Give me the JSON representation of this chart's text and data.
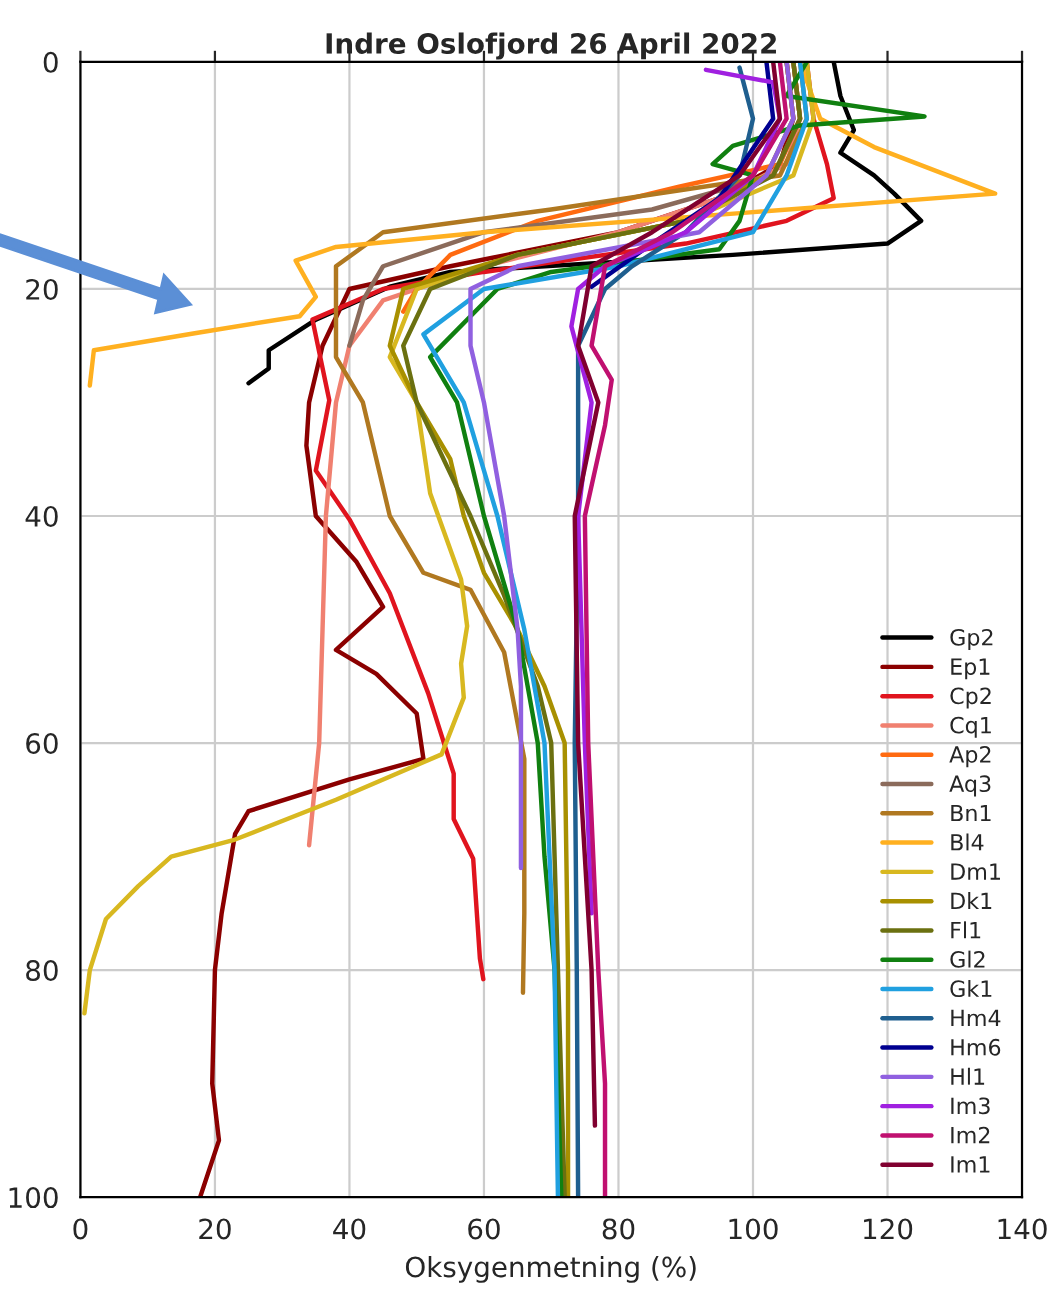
{
  "chart_data": {
    "type": "line",
    "title": "Indre Oslofjord 26 April 2022",
    "xlabel": "Oksygenmetning (%)",
    "xlim": [
      0,
      140
    ],
    "xticks": [
      0,
      20,
      40,
      60,
      80,
      100,
      120,
      140
    ],
    "ylim": [
      100,
      0
    ],
    "yticks": [
      0,
      20,
      40,
      60,
      80,
      100
    ],
    "grid": true,
    "legend": "lower right",
    "line_style": "solid",
    "series": [
      {
        "name": "Gp2",
        "color": "#000000",
        "x": [
          112,
          113,
          115,
          113,
          118,
          121,
          125,
          120,
          97,
          55,
          46,
          35,
          28,
          28,
          25
        ],
        "values": [
          0,
          3,
          6,
          8,
          10,
          11.6,
          14,
          16,
          17,
          18.5,
          19.8,
          22.7,
          25.4,
          27,
          28.3
        ]
      },
      {
        "name": "Ep1",
        "color": "#8b0000",
        "x": [
          105,
          106,
          104,
          95,
          80,
          55,
          40,
          36,
          34,
          33.6,
          35,
          41,
          45,
          38,
          44,
          50,
          51,
          40,
          25,
          23,
          21,
          20,
          19.6,
          20.6,
          17.8
        ],
        "values": [
          0,
          5,
          9,
          12,
          15,
          18,
          20,
          25,
          30,
          33.8,
          40,
          44,
          48,
          51.8,
          53.9,
          57.4,
          61.4,
          63.2,
          66,
          68,
          75,
          80,
          90,
          95,
          100
        ]
      },
      {
        "name": "Cp2",
        "color": "#e0141e",
        "x": [
          108,
          109,
          111,
          112,
          105,
          90,
          60,
          45,
          34.5,
          37,
          35,
          40,
          46,
          51.7,
          55.5,
          55.5,
          58.4,
          59.4,
          59.9
        ],
        "values": [
          0,
          5,
          9,
          12,
          14,
          16,
          18.5,
          20,
          22.7,
          29.8,
          36,
          40.3,
          46.8,
          55.6,
          62.7,
          66.7,
          70.2,
          79,
          80.8
        ]
      },
      {
        "name": "Cq1",
        "color": "#f08070",
        "x": [
          106,
          107,
          105,
          95,
          80,
          60,
          45,
          40,
          38,
          36.5,
          36,
          35.5,
          34.5,
          34
        ],
        "values": [
          0,
          5,
          9,
          12,
          15,
          18,
          21,
          25,
          30,
          40,
          50,
          60,
          66,
          69
        ]
      },
      {
        "name": "Ap2",
        "color": "#ff6a10",
        "x": [
          106,
          107,
          104,
          89,
          68,
          55,
          50,
          48
        ],
        "values": [
          0,
          5,
          9,
          11,
          14,
          17,
          20,
          22
        ]
      },
      {
        "name": "Aq3",
        "color": "#8b6b5b",
        "x": [
          106,
          107,
          103,
          85,
          60,
          45,
          42,
          40
        ],
        "values": [
          0,
          5,
          10,
          13,
          15,
          18,
          21,
          25
        ]
      },
      {
        "name": "Bn1",
        "color": "#b07820",
        "x": [
          107,
          108,
          104,
          70,
          45,
          38,
          38,
          42,
          46,
          51,
          58,
          63,
          66,
          66,
          65.8
        ],
        "values": [
          0,
          5,
          10,
          13,
          15,
          18,
          26,
          30,
          40,
          45,
          46.5,
          52,
          61.4,
          75,
          82
        ]
      },
      {
        "name": "Bl4",
        "color": "#ffb020",
        "x": [
          107,
          110,
          118,
          136,
          98.6,
          60,
          38,
          32,
          35,
          32.6,
          17,
          2,
          1.4
        ],
        "values": [
          0,
          5,
          7.5,
          11.6,
          13.3,
          15,
          16.3,
          17.5,
          20.7,
          22.4,
          23.9,
          25.4,
          28.5
        ]
      },
      {
        "name": "Dm1",
        "color": "#d8b820",
        "x": [
          108,
          109,
          106,
          90,
          65,
          50,
          46,
          50,
          52,
          56.6,
          57.5,
          56.6,
          57,
          53.7,
          38,
          23,
          13.5,
          8.6,
          3.8,
          1.4,
          0.6
        ],
        "values": [
          0,
          5,
          10,
          14,
          17,
          20,
          26,
          30,
          38,
          45.6,
          49.7,
          53,
          56,
          61,
          65,
          68.5,
          70,
          72.6,
          75.5,
          80,
          83.8
        ]
      },
      {
        "name": "Dk1",
        "color": "#a89000",
        "x": [
          105,
          106,
          102,
          90,
          65,
          48,
          46,
          50,
          55,
          57,
          60,
          65,
          69,
          72,
          72.5,
          72.5
        ],
        "values": [
          0,
          5,
          10,
          14,
          17,
          20,
          25,
          30,
          35,
          40,
          45,
          50,
          55,
          60,
          80,
          100
        ]
      },
      {
        "name": "Fl1",
        "color": "#6b7010",
        "x": [
          106,
          107,
          103,
          90,
          65,
          52,
          48,
          50,
          58,
          63,
          68,
          70,
          71,
          72
        ],
        "values": [
          0,
          5,
          10,
          14,
          17,
          20,
          25,
          30,
          40,
          47,
          55,
          60,
          80,
          100
        ]
      },
      {
        "name": "Gl2",
        "color": "#108010",
        "x": [
          108,
          105,
          125.5,
          107,
          97,
          94,
          100,
          98,
          95,
          70,
          62,
          52,
          56,
          60,
          65,
          68,
          69,
          70.5,
          71.5
        ],
        "values": [
          0,
          3,
          4.8,
          5.6,
          7.4,
          9,
          10,
          14,
          16.5,
          18.5,
          20,
          26,
          30,
          40,
          50,
          60,
          70,
          80,
          100
        ]
      },
      {
        "name": "Gk1",
        "color": "#20a0e0",
        "x": [
          107,
          108,
          105,
          100,
          80,
          60,
          51,
          57,
          62,
          66,
          69,
          70.5,
          71
        ],
        "values": [
          0,
          5,
          10,
          15,
          18,
          20,
          24,
          30,
          40,
          50,
          60,
          80,
          100
        ]
      },
      {
        "name": "Hm4",
        "color": "#1f5f8f",
        "x": [
          98,
          100,
          98,
          90,
          82,
          78,
          74,
          74,
          73.5,
          73.8,
          74
        ],
        "values": [
          0.5,
          5,
          10,
          15,
          18,
          20,
          25,
          40,
          60,
          80,
          100
        ]
      },
      {
        "name": "Hm6",
        "color": "#000090",
        "x": [
          102,
          103,
          95,
          85,
          76
        ],
        "values": [
          0,
          5,
          12,
          16,
          19.8
        ]
      },
      {
        "name": "Hl1",
        "color": "#9060e0",
        "x": [
          105,
          106,
          102,
          92,
          65,
          58,
          58,
          60,
          63,
          65,
          65.5,
          65.5
        ],
        "values": [
          0,
          5,
          10,
          15,
          18,
          20,
          25,
          30,
          40,
          50,
          55,
          71
        ]
      },
      {
        "name": "Im3",
        "color": "#a020e0",
        "x": [
          93,
          103,
          104,
          100,
          90,
          78,
          74,
          73,
          76,
          74,
          75,
          76
        ],
        "values": [
          0.7,
          1.8,
          5,
          10,
          15,
          18,
          20,
          23.3,
          30,
          40,
          60,
          75
        ]
      },
      {
        "name": "Im2",
        "color": "#c01070",
        "x": [
          104,
          105,
          100,
          88,
          78,
          76,
          79,
          78,
          75,
          75.5,
          77,
          78,
          78
        ],
        "values": [
          0,
          5,
          10,
          15,
          18,
          25,
          28,
          32,
          40,
          60,
          80,
          90,
          100
        ]
      },
      {
        "name": "Im1",
        "color": "#800030",
        "x": [
          103,
          104,
          98,
          85,
          76,
          74,
          77,
          73.5,
          74,
          76,
          76.5
        ],
        "values": [
          0,
          5,
          10,
          15,
          18,
          25,
          30,
          40,
          60,
          80,
          93.7
        ]
      }
    ]
  }
}
